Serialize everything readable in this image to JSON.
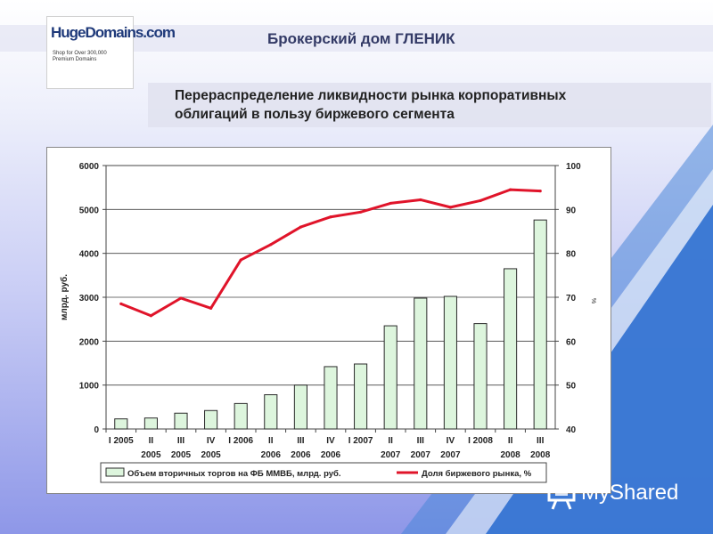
{
  "header": {
    "title": "Брокерский дом ГЛЕНИК"
  },
  "subtitle": {
    "line1": "Перераспределение ликвидности рынка корпоративных",
    "line2": "облигаций в пользу биржевого сегмента"
  },
  "logo": {
    "main": "HugeDomains.com",
    "sub": "Shop for Over 300,000 Premium Domains"
  },
  "watermark": {
    "text": "MyShared",
    "icon": "presentation-board-icon"
  },
  "colors": {
    "bar_fill": "#ddf5dd",
    "bar_stroke": "#2a2a2a",
    "line": "#e0142a",
    "accent_blue": "#1f5bc7"
  },
  "chart_data": {
    "type": "bar",
    "categories": [
      [
        "I 2005",
        ""
      ],
      [
        "II",
        "2005"
      ],
      [
        "III",
        "2005"
      ],
      [
        "IV",
        "2005"
      ],
      [
        "I 2006",
        ""
      ],
      [
        "II",
        "2006"
      ],
      [
        "III",
        "2006"
      ],
      [
        "IV",
        "2006"
      ],
      [
        "I 2007",
        ""
      ],
      [
        "II",
        "2007"
      ],
      [
        "III",
        "2007"
      ],
      [
        "IV",
        "2007"
      ],
      [
        "I 2008",
        ""
      ],
      [
        "II",
        "2008"
      ],
      [
        "III",
        "2008"
      ]
    ],
    "series": [
      {
        "name": "Объем вторичных торгов на ФБ ММВБ, млрд. руб.",
        "type": "bar",
        "axis": "left",
        "values": [
          230,
          250,
          360,
          420,
          580,
          780,
          1000,
          1420,
          1480,
          2350,
          2980,
          3020,
          2400,
          3650,
          4760
        ]
      },
      {
        "name": "Доля биржевого рынка, %",
        "type": "line",
        "axis": "right",
        "values": [
          68.5,
          65.8,
          69.8,
          67.5,
          78.5,
          82.0,
          86.0,
          88.3,
          89.4,
          91.4,
          92.2,
          90.5,
          92.0,
          94.5,
          94.2
        ]
      }
    ],
    "ylabel": "млрд. руб.",
    "y2label": "%",
    "ylim": [
      0,
      6000
    ],
    "y2lim": [
      40,
      100
    ],
    "yticks": [
      0,
      1000,
      2000,
      3000,
      4000,
      5000,
      6000
    ],
    "y2ticks": [
      40,
      50,
      60,
      70,
      80,
      90,
      100
    ],
    "grid": true,
    "legend_placement": "bottom"
  }
}
